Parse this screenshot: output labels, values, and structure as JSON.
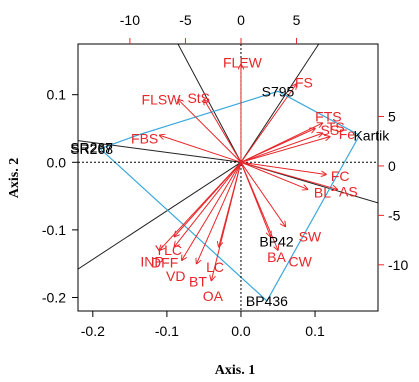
{
  "chart_data": {
    "type": "scatter",
    "xlabel": "Axis. 1",
    "ylabel": "Axis. 2",
    "xlim": [
      -0.22,
      0.185
    ],
    "ylim": [
      -0.22,
      0.175
    ],
    "x_ticks": [
      "-0.2",
      "-0.1",
      "0.0",
      "0.1"
    ],
    "x_tick_values": [
      -0.2,
      -0.1,
      0.0,
      0.1
    ],
    "y_ticks": [
      "-0.2",
      "-0.1",
      "0.0",
      "0.1"
    ],
    "y_tick_values": [
      -0.2,
      -0.1,
      0.0,
      0.1
    ],
    "top_ticks": [
      "-10",
      "-5",
      "0",
      "5"
    ],
    "top_tick_values": [
      -10,
      -5,
      0,
      5
    ],
    "right_ticks": [
      "5",
      "0",
      "-5",
      "-10"
    ],
    "right_tick_values": [
      5,
      0,
      -5,
      -10
    ],
    "secondary_lim": [
      -14.67,
      12.33
    ],
    "colors": {
      "traits": "#e8262a",
      "genotypes": "#000000",
      "hull": "#3aa9dc",
      "sectors": "#222222",
      "frame": "#000000"
    },
    "genotypes": [
      {
        "name": "S795",
        "x": 0.05,
        "y": 0.105
      },
      {
        "name": "SR268",
        "x": -0.19,
        "y": 0.02
      },
      {
        "name": "SR267",
        "x": -0.19,
        "y": 0.022
      },
      {
        "name": "Kartik",
        "x": 0.16,
        "y": 0.04
      },
      {
        "name": "BP42",
        "x": 0.048,
        "y": -0.117
      },
      {
        "name": "BP436",
        "x": 0.035,
        "y": -0.205
      }
    ],
    "traits": [
      {
        "name": "FLEW",
        "x": 0.0,
        "y": 0.145,
        "tx": 0.002,
        "ty": 0.148,
        "anchor": "middle"
      },
      {
        "name": "FS",
        "x": 0.075,
        "y": 0.116,
        "tx": 0.085,
        "ty": 0.118,
        "anchor": "middle"
      },
      {
        "name": "FLSW",
        "x": -0.085,
        "y": 0.093,
        "tx": -0.108,
        "ty": 0.093,
        "anchor": "middle"
      },
      {
        "name": "StS",
        "x": -0.05,
        "y": 0.093,
        "tx": -0.057,
        "ty": 0.095,
        "anchor": "middle"
      },
      {
        "name": "FTS",
        "x": 0.11,
        "y": 0.058,
        "tx": 0.118,
        "ty": 0.068,
        "anchor": "middle"
      },
      {
        "name": "SS",
        "x": 0.11,
        "y": 0.043,
        "tx": 0.12,
        "ty": 0.048,
        "anchor": "middle"
      },
      {
        "name": "Fe",
        "x": 0.12,
        "y": 0.038,
        "tx": 0.143,
        "ty": 0.042,
        "anchor": "middle"
      },
      {
        "name": "FBS",
        "x": -0.11,
        "y": 0.04,
        "tx": -0.13,
        "ty": 0.035,
        "anchor": "middle"
      },
      {
        "name": "FC",
        "x": 0.115,
        "y": -0.018,
        "tx": 0.134,
        "ty": -0.02,
        "anchor": "middle"
      },
      {
        "name": "BL",
        "x": 0.09,
        "y": -0.04,
        "tx": 0.11,
        "ty": -0.045,
        "anchor": "middle"
      },
      {
        "name": "AS",
        "x": 0.13,
        "y": -0.04,
        "tx": 0.145,
        "ty": -0.043,
        "anchor": "middle"
      },
      {
        "name": "SW",
        "x": 0.06,
        "y": -0.095,
        "tx": 0.093,
        "ty": -0.11,
        "anchor": "middle"
      },
      {
        "name": "BA",
        "x": 0.04,
        "y": -0.11,
        "tx": 0.048,
        "ty": -0.14,
        "anchor": "middle"
      },
      {
        "name": "CW",
        "x": 0.05,
        "y": -0.13,
        "tx": 0.08,
        "ty": -0.147,
        "anchor": "middle"
      },
      {
        "name": "YLC",
        "x": -0.09,
        "y": -0.11,
        "tx": -0.098,
        "ty": -0.13,
        "anchor": "middle"
      },
      {
        "name": "INP",
        "x": -0.11,
        "y": -0.13,
        "tx": -0.12,
        "ty": -0.147,
        "anchor": "middle"
      },
      {
        "name": "DFF",
        "x": -0.09,
        "y": -0.125,
        "tx": -0.103,
        "ty": -0.148,
        "anchor": "middle"
      },
      {
        "name": "LC",
        "x": -0.03,
        "y": -0.125,
        "tx": -0.035,
        "ty": -0.155,
        "anchor": "middle"
      },
      {
        "name": "VD",
        "x": -0.08,
        "y": -0.145,
        "tx": -0.088,
        "ty": -0.168,
        "anchor": "middle"
      },
      {
        "name": "BT",
        "x": -0.06,
        "y": -0.15,
        "tx": -0.058,
        "ty": -0.176,
        "anchor": "middle"
      },
      {
        "name": "OA",
        "x": -0.04,
        "y": -0.175,
        "tx": -0.038,
        "ty": -0.198,
        "anchor": "middle"
      },
      {
        "name": "TS",
        "x": 0.1,
        "y": 0.05,
        "tx": 0.128,
        "ty": 0.052,
        "anchor": "middle"
      }
    ],
    "hull": [
      {
        "x": 0.05,
        "y": 0.105
      },
      {
        "x": 0.16,
        "y": 0.04
      },
      {
        "x": 0.035,
        "y": -0.205
      },
      {
        "x": -0.19,
        "y": 0.02
      },
      {
        "x": -0.14,
        "y": 0.04
      }
    ],
    "sector_lines": [
      {
        "x": -0.085,
        "y": 0.175
      },
      {
        "x": 0.105,
        "y": 0.175
      },
      {
        "x": 0.185,
        "y": -0.06
      },
      {
        "x": -0.22,
        "y": -0.158
      },
      {
        "x": -0.22,
        "y": 0.032
      }
    ],
    "grid": false,
    "legend": "none"
  }
}
